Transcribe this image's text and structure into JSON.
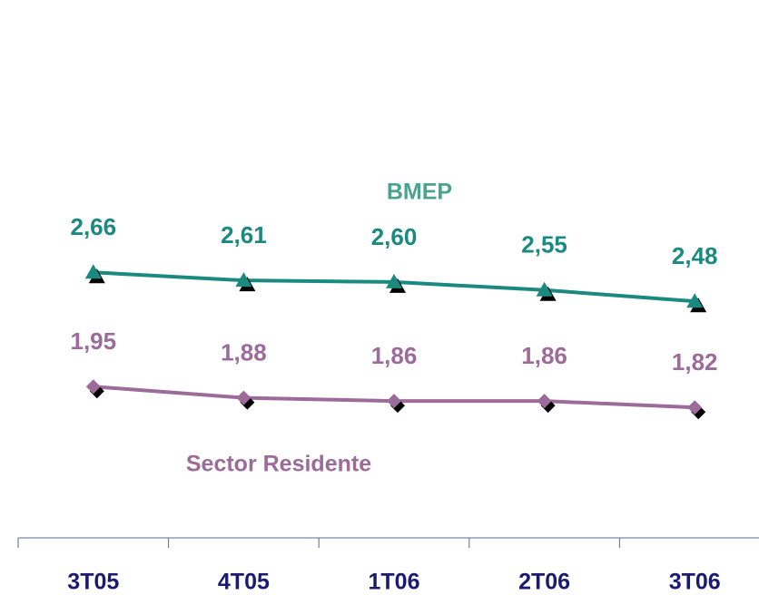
{
  "chart_data": {
    "type": "line",
    "categories": [
      "3T05",
      "4T05",
      "1T06",
      "2T06",
      "3T06"
    ],
    "series": [
      {
        "name": "BMEP",
        "color": "#1a8a80",
        "marker": "triangle",
        "values": [
          2.66,
          2.61,
          2.6,
          2.55,
          2.48
        ],
        "value_labels": [
          "2,66",
          "2,61",
          "2,60",
          "2,55",
          "2,48"
        ]
      },
      {
        "name": "Sector Residente",
        "color": "#9c6b9a",
        "marker": "diamond",
        "values": [
          1.95,
          1.88,
          1.86,
          1.86,
          1.82
        ],
        "value_labels": [
          "1,95",
          "1,88",
          "1,86",
          "1,86",
          "1,82"
        ]
      }
    ],
    "ylim": [
      1.5,
      3.0
    ]
  }
}
